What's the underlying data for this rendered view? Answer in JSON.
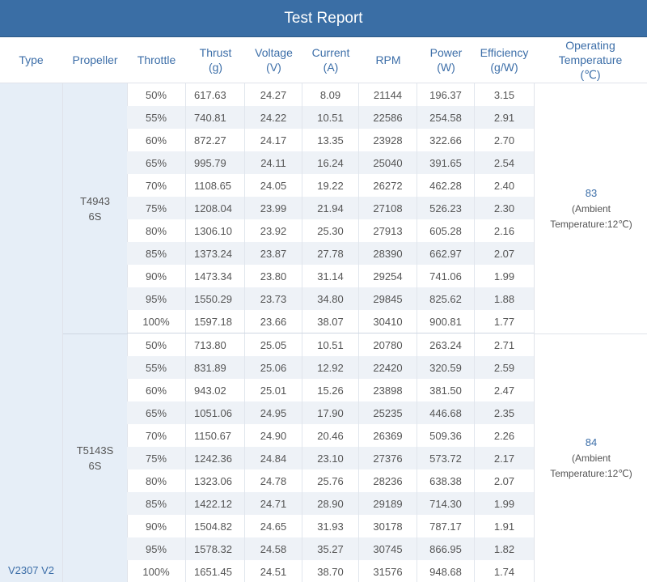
{
  "title": "Test Report",
  "headers": {
    "type": "Type",
    "propeller": "Propeller",
    "throttle": "Throttle",
    "thrust": [
      "Thrust",
      "(g)"
    ],
    "voltage": [
      "Voltage",
      "(V)"
    ],
    "current": [
      "Current",
      "(A)"
    ],
    "rpm": "RPM",
    "power": [
      "Power",
      "(W)"
    ],
    "efficiency": [
      "Efficiency",
      "(g/W)"
    ],
    "temp": [
      "Operating",
      "Temperature",
      "(℃)"
    ]
  },
  "type_label": "V2307 V2",
  "groups": [
    {
      "propeller": [
        "T4943",
        "6S"
      ],
      "temp_value": "83",
      "temp_note": [
        "(Ambient",
        "Temperature:12℃)"
      ],
      "rows": [
        [
          "50%",
          "617.63",
          "24.27",
          "8.09",
          "21144",
          "196.37",
          "3.15"
        ],
        [
          "55%",
          "740.81",
          "24.22",
          "10.51",
          "22586",
          "254.58",
          "2.91"
        ],
        [
          "60%",
          "872.27",
          "24.17",
          "13.35",
          "23928",
          "322.66",
          "2.70"
        ],
        [
          "65%",
          "995.79",
          "24.11",
          "16.24",
          "25040",
          "391.65",
          "2.54"
        ],
        [
          "70%",
          "1108.65",
          "24.05",
          "19.22",
          "26272",
          "462.28",
          "2.40"
        ],
        [
          "75%",
          "1208.04",
          "23.99",
          "21.94",
          "27108",
          "526.23",
          "2.30"
        ],
        [
          "80%",
          "1306.10",
          "23.92",
          "25.30",
          "27913",
          "605.28",
          "2.16"
        ],
        [
          "85%",
          "1373.24",
          "23.87",
          "27.78",
          "28390",
          "662.97",
          "2.07"
        ],
        [
          "90%",
          "1473.34",
          "23.80",
          "31.14",
          "29254",
          "741.06",
          "1.99"
        ],
        [
          "95%",
          "1550.29",
          "23.73",
          "34.80",
          "29845",
          "825.62",
          "1.88"
        ],
        [
          "100%",
          "1597.18",
          "23.66",
          "38.07",
          "30410",
          "900.81",
          "1.77"
        ]
      ]
    },
    {
      "propeller": [
        "T5143S",
        "6S"
      ],
      "temp_value": "84",
      "temp_note": [
        "(Ambient",
        "Temperature:12℃)"
      ],
      "rows": [
        [
          "50%",
          "713.80",
          "25.05",
          "10.51",
          "20780",
          "263.24",
          "2.71"
        ],
        [
          "55%",
          "831.89",
          "25.06",
          "12.92",
          "22420",
          "320.59",
          "2.59"
        ],
        [
          "60%",
          "943.02",
          "25.01",
          "15.26",
          "23898",
          "381.50",
          "2.47"
        ],
        [
          "65%",
          "1051.06",
          "24.95",
          "17.90",
          "25235",
          "446.68",
          "2.35"
        ],
        [
          "70%",
          "1150.67",
          "24.90",
          "20.46",
          "26369",
          "509.36",
          "2.26"
        ],
        [
          "75%",
          "1242.36",
          "24.84",
          "23.10",
          "27376",
          "573.72",
          "2.17"
        ],
        [
          "80%",
          "1323.06",
          "24.78",
          "25.76",
          "28236",
          "638.38",
          "2.07"
        ],
        [
          "85%",
          "1422.12",
          "24.71",
          "28.90",
          "29189",
          "714.30",
          "1.99"
        ],
        [
          "90%",
          "1504.82",
          "24.65",
          "31.93",
          "30178",
          "787.17",
          "1.91"
        ],
        [
          "95%",
          "1578.32",
          "24.58",
          "35.27",
          "30745",
          "866.95",
          "1.82"
        ],
        [
          "100%",
          "1651.45",
          "24.51",
          "38.70",
          "31576",
          "948.68",
          "1.74"
        ]
      ]
    }
  ]
}
